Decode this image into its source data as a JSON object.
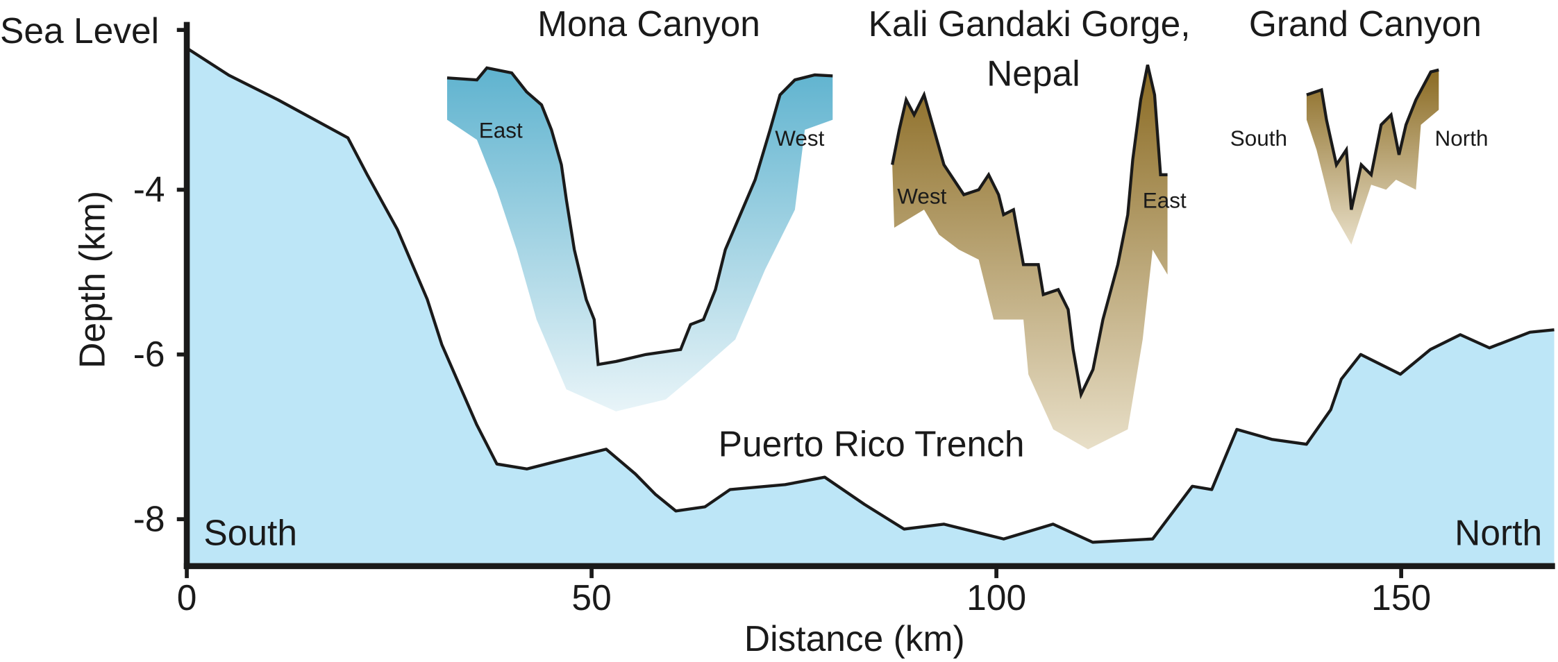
{
  "chart_data": {
    "type": "area",
    "x_label": "Distance (km)",
    "y_label": "Depth (km)",
    "top_label": "Sea Level",
    "color": "#bde6f7",
    "line_color": "#1a1a1a",
    "xlim": [
      0,
      169
    ],
    "ylim": [
      -8.57,
      -2.06
    ],
    "xticks": [
      0,
      50,
      100,
      150
    ],
    "yticks": [
      -4,
      -6,
      -8
    ],
    "x": [
      0,
      5.2,
      11.3,
      19.9,
      22.3,
      26.0,
      29.7,
      31.5,
      35.8,
      38.3,
      42.0,
      45.6,
      51.8,
      55.4,
      57.9,
      60.4,
      64.0,
      67.1,
      73.9,
      78.8,
      83.7,
      88.6,
      93.5,
      100.9,
      107.0,
      111.9,
      119.3,
      124.2,
      126.6,
      129.7,
      134.0,
      138.3,
      141.3,
      142.6,
      145.0,
      149.9,
      153.6,
      157.3,
      160.9,
      165.9,
      168.9
    ],
    "values": [
      -2.28,
      -2.61,
      -2.91,
      -3.37,
      -3.82,
      -4.48,
      -5.33,
      -5.88,
      -6.85,
      -7.33,
      -7.39,
      -7.3,
      -7.15,
      -7.45,
      -7.7,
      -7.9,
      -7.85,
      -7.64,
      -7.58,
      -7.49,
      -7.82,
      -8.12,
      -8.06,
      -8.24,
      -8.06,
      -8.28,
      -8.24,
      -7.6,
      -7.64,
      -6.91,
      -7.03,
      -7.09,
      -6.67,
      -6.3,
      -6.0,
      -6.24,
      -5.94,
      -5.76,
      -5.92,
      -5.73,
      -5.7
    ],
    "annotations": {
      "trench": "Puerto Rico Trench",
      "south": "South",
      "north": "North"
    },
    "insets": [
      {
        "name_lines": [
          "Mona Canyon"
        ],
        "left": "East",
        "right": "West"
      },
      {
        "name_lines": [
          "Kali Gandaki Gorge,",
          "Nepal"
        ],
        "left": "West",
        "right": "East"
      },
      {
        "name_lines": [
          "Grand Canyon"
        ],
        "left": "South",
        "right": "North"
      }
    ]
  }
}
